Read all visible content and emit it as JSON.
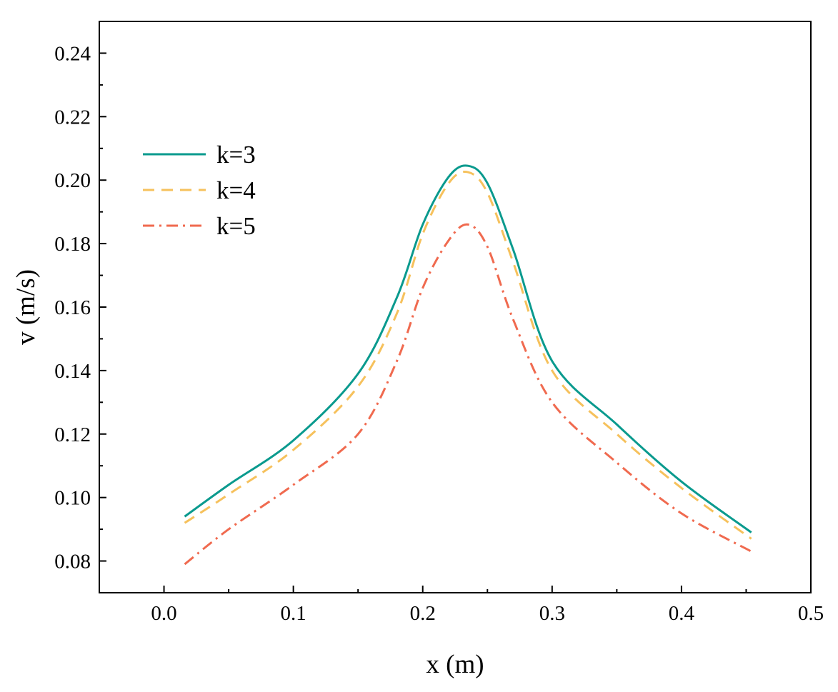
{
  "chart_data": {
    "type": "line",
    "xlabel": "x (m)",
    "ylabel": "v (m/s)",
    "xlim": [
      -0.05,
      0.5
    ],
    "ylim": [
      0.07,
      0.25
    ],
    "xticks": [
      "0.0",
      "0.1",
      "0.2",
      "0.3",
      "0.4",
      "0.5"
    ],
    "yticks": [
      "0.08",
      "0.10",
      "0.12",
      "0.14",
      "0.16",
      "0.18",
      "0.20",
      "0.22",
      "0.24"
    ],
    "grid": false,
    "legend_position": "upper-left",
    "x": [
      0.016,
      0.05,
      0.1,
      0.15,
      0.18,
      0.2,
      0.22,
      0.235,
      0.25,
      0.27,
      0.3,
      0.35,
      0.4,
      0.454
    ],
    "series": [
      {
        "name": "k=3",
        "color": "#0a9a8e",
        "dash": "solid",
        "values": [
          0.094,
          0.104,
          0.118,
          0.139,
          0.163,
          0.186,
          0.201,
          0.2045,
          0.199,
          0.178,
          0.143,
          0.123,
          0.105,
          0.089
        ]
      },
      {
        "name": "k=4",
        "color": "#f6c15c",
        "dash": "dash",
        "values": [
          0.092,
          0.101,
          0.115,
          0.135,
          0.158,
          0.183,
          0.199,
          0.2025,
          0.196,
          0.174,
          0.14,
          0.12,
          0.103,
          0.087
        ]
      },
      {
        "name": "k=5",
        "color": "#f06a4f",
        "dash": "dashdot",
        "values": [
          0.079,
          0.09,
          0.104,
          0.12,
          0.143,
          0.166,
          0.181,
          0.186,
          0.179,
          0.156,
          0.13,
          0.111,
          0.095,
          0.083
        ]
      }
    ]
  }
}
